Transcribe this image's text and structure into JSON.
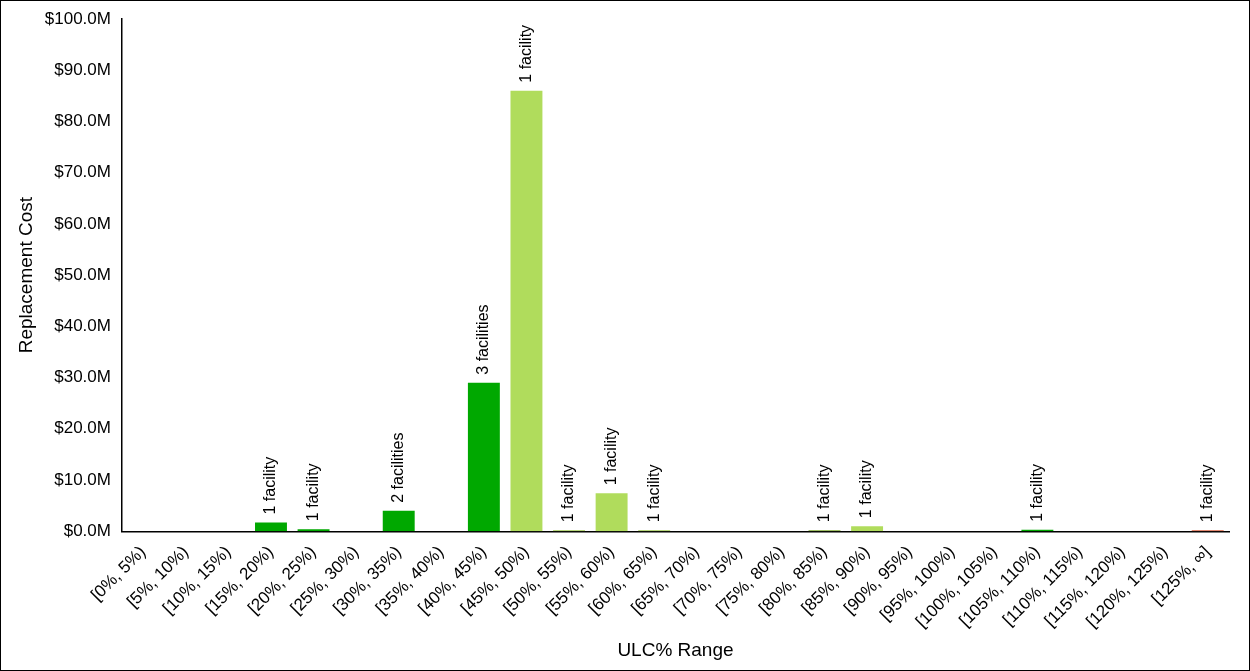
{
  "chart_data": {
    "type": "bar",
    "xlabel": "ULC% Range",
    "ylabel": "Replacement Cost",
    "categories": [
      "[0%, 5%)",
      "[5%, 10%)",
      "[10%, 15%)",
      "[15%, 20%)",
      "[20%, 25%)",
      "[25%, 30%)",
      "[30%, 35%)",
      "[35%, 40%)",
      "[40%, 45%)",
      "[45%, 50%)",
      "[50%, 55%)",
      "[55%, 60%)",
      "[60%, 65%)",
      "[65%, 70%)",
      "[70%, 75%)",
      "[75%, 80%)",
      "[80%, 85%)",
      "[85%, 90%)",
      "[90%, 95%)",
      "[95%, 100%)",
      "[100%, 105%)",
      "[105%, 110%)",
      "[110%, 115%)",
      "[115%, 120%)",
      "[120%, 125%)",
      "[125%, ∞]"
    ],
    "values": [
      0,
      0,
      0,
      1.7,
      0.4,
      0,
      4,
      0,
      29,
      86,
      0.2,
      7.4,
      0.2,
      0,
      0,
      0,
      0.2,
      1,
      0,
      0,
      0,
      0.3,
      0,
      0,
      0,
      0.2
    ],
    "colors": [
      "#00a800",
      "#00a800",
      "#00a800",
      "#00a800",
      "#00a800",
      "#00a800",
      "#00a800",
      "#00a800",
      "#00a800",
      "#b0dc5c",
      "#a0c850",
      "#b0dc5c",
      "#a0c850",
      "#00a800",
      "#00a800",
      "#00a800",
      "#7fa830",
      "#b0dc5c",
      "#00a800",
      "#00a800",
      "#00a800",
      "#00a800",
      "#00a800",
      "#00a800",
      "#00a800",
      "#d95f3f"
    ],
    "annotations": [
      {
        "text": "1 facility",
        "x": "[15%, 20%)",
        "y": 1.7
      },
      {
        "text": "1 facility",
        "x": "[20%, 25%)",
        "y": 0.4
      },
      {
        "text": "2 facilities",
        "x": "[30%, 35%)",
        "y": 4
      },
      {
        "text": "3 facilities",
        "x": "[40%, 45%)",
        "y": 29
      },
      {
        "text": "1 facility",
        "x": "[45%, 50%)",
        "y": 86
      },
      {
        "text": "1 facility",
        "x": "[50%, 55%)",
        "y": 0.2
      },
      {
        "text": "1 facility",
        "x": "[55%, 60%)",
        "y": 7.4
      },
      {
        "text": "1 facility",
        "x": "[60%, 65%)",
        "y": 0.2
      },
      {
        "text": "1 facility",
        "x": "[80%, 85%)",
        "y": 0.2
      },
      {
        "text": "1 facility",
        "x": "[85%, 90%)",
        "y": 1
      },
      {
        "text": "1 facility",
        "x": "[105%, 110%)",
        "y": 0.3
      },
      {
        "text": "1 facility",
        "x": "[125%, ∞]",
        "y": 0.2
      }
    ],
    "ylim": [
      0,
      100
    ],
    "yticks": [
      {
        "value": 0,
        "label": "$0.0M"
      },
      {
        "value": 10,
        "label": "$10.0M"
      },
      {
        "value": 20,
        "label": "$20.0M"
      },
      {
        "value": 30,
        "label": "$30.0M"
      },
      {
        "value": 40,
        "label": "$40.0M"
      },
      {
        "value": 50,
        "label": "$50.0M"
      },
      {
        "value": 60,
        "label": "$60.0M"
      },
      {
        "value": 70,
        "label": "$70.0M"
      },
      {
        "value": 80,
        "label": "$80.0M"
      },
      {
        "value": 90,
        "label": "$90.0M"
      },
      {
        "value": 100,
        "label": "$100.0M"
      }
    ],
    "grid": false,
    "legend": false
  }
}
